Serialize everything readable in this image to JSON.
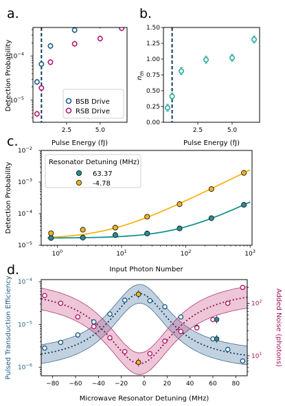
{
  "chart_data": [
    {
      "panel": "a.",
      "type": "scatter",
      "xlabel": "Pulse Energy (fJ)",
      "ylabel": "Detection Probability",
      "xlim": [
        0,
        7
      ],
      "ylim_log10": [
        -5.5,
        -3.35
      ],
      "xticks": [
        2.5,
        5.0
      ],
      "xtick_labels": [
        "2.5",
        "5.0"
      ],
      "yticks_log10": [
        -5,
        -4
      ],
      "ytick_labels": [
        "10",
        "10"
      ],
      "ytick_exponents": [
        "-5",
        "-4"
      ],
      "vline_x": 0.63,
      "legend_position": "lower-right",
      "series": [
        {
          "name": "BSB Drive",
          "color": "#1f5b85",
          "x": [
            0.3,
            0.63,
            1.3,
            3.1,
            5.0,
            6.6
          ],
          "y": [
            2.6e-05,
            6.6e-05,
            0.00017,
            0.00039,
            0.0005,
            0.00072
          ]
        },
        {
          "name": "RSB Drive",
          "color": "#b5176c",
          "x": [
            0.3,
            0.63,
            1.3,
            3.1,
            5.0,
            6.6
          ],
          "y": [
            4.9e-06,
            1.9e-05,
            7.3e-05,
            0.00019,
            0.00025,
            0.00043
          ]
        }
      ]
    },
    {
      "panel": "b.",
      "type": "scatter",
      "xlabel": "Pulse Energy (fJ)",
      "ylabel": "n",
      "ylabel_sub": "th",
      "xlim": [
        0,
        7
      ],
      "ylim": [
        0,
        1.5
      ],
      "xticks": [
        2.5,
        5.0
      ],
      "xtick_labels": [
        "2.5",
        "5.0"
      ],
      "yticks": [
        0,
        0.25,
        0.5,
        0.75,
        1.0,
        1.25,
        1.5
      ],
      "ytick_labels": [
        "0.00",
        "0.25",
        "0.50",
        "0.75",
        "1.00",
        "1.25",
        "1.50"
      ],
      "vline_x": 0.63,
      "series": [
        {
          "name": "",
          "color": "#2aa79a",
          "x": [
            0.3,
            0.63,
            1.3,
            3.1,
            5.0,
            6.6
          ],
          "y": [
            0.23,
            0.41,
            0.81,
            0.99,
            1.02,
            1.31
          ]
        }
      ]
    },
    {
      "panel": "c.",
      "type": "scatter",
      "xlabel": "Input Photon Number",
      "ylabel": "Detection Probability",
      "xscale": "log",
      "xlim_log10": [
        -0.25,
        3.03
      ],
      "ylim_log10": [
        -5,
        -2
      ],
      "xticks_log10": [
        0,
        1,
        2,
        3
      ],
      "xtick_labels": [
        "10",
        "10",
        "10",
        "10"
      ],
      "xtick_exponents": [
        "0",
        "1",
        "2",
        "3"
      ],
      "yticks_log10": [
        -5,
        -4,
        -3,
        -2
      ],
      "ytick_labels": [
        "10",
        "10",
        "10",
        "10"
      ],
      "ytick_exponents": [
        "-5",
        "-4",
        "-3",
        "-2"
      ],
      "legend_title": "Resonator Detuning (MHz)",
      "legend_position": "top-left",
      "series": [
        {
          "name": "63.37",
          "color": "#2b8c95",
          "x": [
            0.8,
            2.5,
            8,
            25,
            80,
            250,
            800
          ],
          "y": [
            1.7e-05,
            1.75e-05,
            2.1e-05,
            2.35e-05,
            3.4e-05,
            7.2e-05,
            0.00019
          ],
          "fit_color": "#14918f"
        },
        {
          "name": "-4.78",
          "color": "#f0b423",
          "x": [
            0.8,
            2.5,
            8,
            25,
            80,
            250,
            800
          ],
          "y": [
            2.4e-05,
            3.1e-05,
            3.6e-05,
            8e-05,
            0.0002,
            0.0006,
            0.00195
          ],
          "fit_color": "#f5b316"
        }
      ]
    },
    {
      "panel": "d.",
      "type": "scatter",
      "xlabel": "Microwave Resonator Detuning (MHz)",
      "ylabel": "Pulsed Transduction Efficiency",
      "ylabel_right": "Added Noise (photons)",
      "xlim": [
        -90,
        90
      ],
      "xticks": [
        -80,
        -60,
        -40,
        -20,
        0,
        20,
        40,
        60,
        80
      ],
      "xtick_labels": [
        "−80",
        "−60",
        "−40",
        "−20",
        "0",
        "20",
        "40",
        "60",
        "80"
      ],
      "ylim_log10": [
        -6.2,
        -3.95
      ],
      "yticks_log10": [
        -6,
        -5,
        -4
      ],
      "ytick_labels": [
        "10",
        "10",
        "10"
      ],
      "ytick_exponents": [
        "-6",
        "-5",
        "-4"
      ],
      "ylim_right_log10": [
        0.62,
        2.45
      ],
      "yticks_right_log10": [
        1,
        2
      ],
      "ytick_right_labels": [
        "10",
        "10"
      ],
      "ytick_right_exponents": [
        "1",
        "2"
      ],
      "series": [
        {
          "name": "",
          "axis": "left",
          "color": "#1f5b85",
          "x": [
            -87,
            -73,
            -58,
            -44,
            -30,
            -17,
            -5,
            5,
            18,
            32,
            46,
            60,
            73,
            86
          ],
          "y": [
            2.8e-06,
            3.8e-06,
            5.7e-06,
            1.15e-05,
            1.75e-05,
            3.7e-05,
            5.1e-05,
            3.6e-05,
            2.6e-05,
            1.5e-05,
            8.6e-06,
            4.6e-06,
            2.6e-06,
            1.4e-06
          ]
        },
        {
          "name": "",
          "axis": "right",
          "color": "#b5176c",
          "x": [
            -87,
            -73,
            -58,
            -44,
            -30,
            -17,
            -5,
            5,
            18,
            32,
            46,
            60,
            73,
            86
          ],
          "y": [
            140,
            100,
            55,
            36,
            22,
            12,
            7.5,
            11,
            19,
            29,
            34,
            49,
            100,
            200
          ]
        }
      ],
      "highlights": [
        {
          "axis": "left",
          "x": -5,
          "y": 5.1e-05,
          "color": "#f0b423"
        },
        {
          "axis": "right",
          "x": -5,
          "y": 7.5,
          "color": "#f0b423"
        },
        {
          "axis": "left",
          "x": 63.37,
          "y": 4.6e-06,
          "color": "#2b8c95"
        },
        {
          "axis": "right",
          "x": 63.37,
          "y": 49,
          "color": "#2b8c95"
        }
      ]
    }
  ]
}
